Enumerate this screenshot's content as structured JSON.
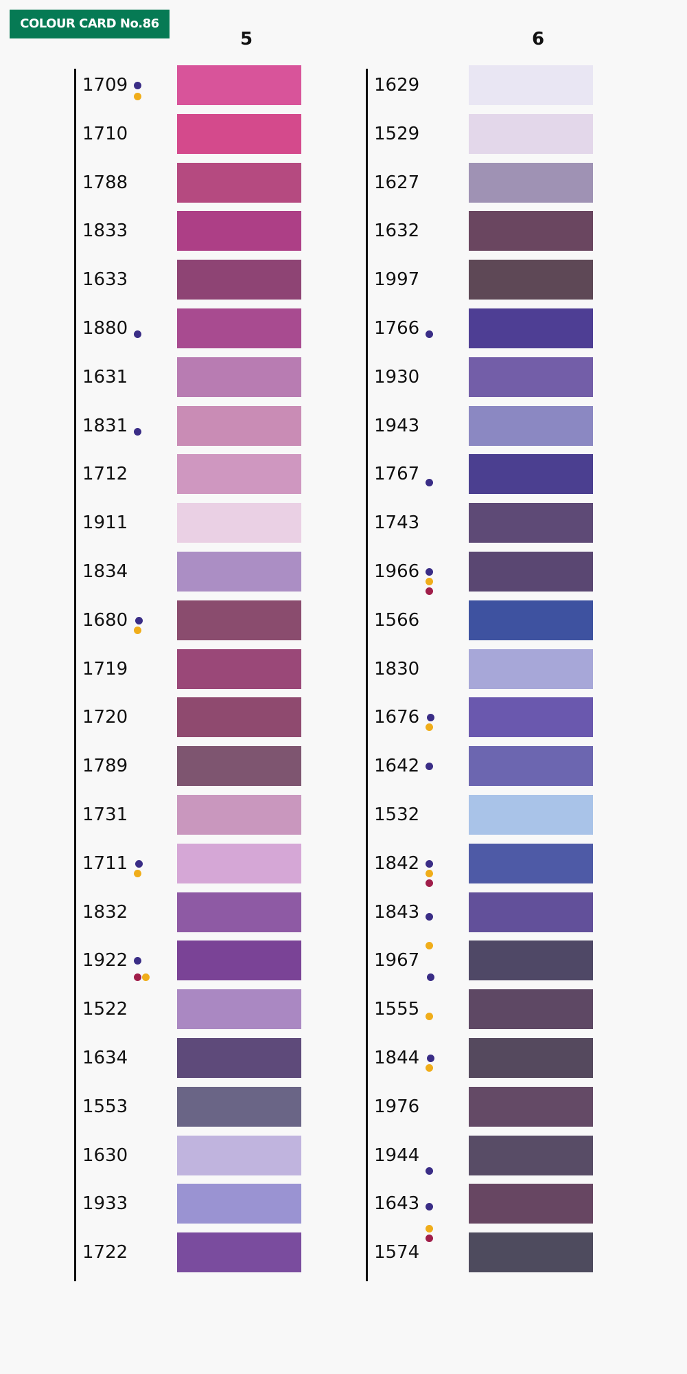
{
  "badge": "COLOUR CARD No.86",
  "dot_colors": {
    "navy": "#3a2d86",
    "yellow": "#f0ad1a",
    "crimson": "#a01e4a"
  },
  "columns": [
    {
      "heading": "5",
      "rows": [
        {
          "code": "1709",
          "color": "#d8549a",
          "dots": [
            [
              "navy",
              0,
              0
            ],
            [
              "yellow",
              0,
              16
            ]
          ]
        },
        {
          "code": "1710",
          "color": "#d44a8c",
          "dots": []
        },
        {
          "code": "1788",
          "color": "#b54a80",
          "dots": []
        },
        {
          "code": "1833",
          "color": "#ad3f86",
          "dots": []
        },
        {
          "code": "1633",
          "color": "#8e4474",
          "dots": []
        },
        {
          "code": "1880",
          "color": "#a84b90",
          "dots": [
            [
              "navy",
              0,
              8
            ]
          ]
        },
        {
          "code": "1631",
          "color": "#b87cb2",
          "dots": []
        },
        {
          "code": "1831",
          "color": "#c98cb5",
          "dots": [
            [
              "navy",
              0,
              8
            ]
          ]
        },
        {
          "code": "1712",
          "color": "#cf97c0",
          "dots": []
        },
        {
          "code": "1911",
          "color": "#ead0e4",
          "dots": []
        },
        {
          "code": "1834",
          "color": "#ab8ec4",
          "dots": []
        },
        {
          "code": "1680",
          "color": "#8a4c6e",
          "dots": [
            [
              "navy",
              2,
              0
            ],
            [
              "yellow",
              0,
              14
            ]
          ]
        },
        {
          "code": "1719",
          "color": "#9a4878",
          "dots": []
        },
        {
          "code": "1720",
          "color": "#8f4a6f",
          "dots": []
        },
        {
          "code": "1789",
          "color": "#7e5570",
          "dots": []
        },
        {
          "code": "1731",
          "color": "#c997be",
          "dots": []
        },
        {
          "code": "1711",
          "color": "#d5a7d6",
          "dots": [
            [
              "navy",
              2,
              0
            ],
            [
              "yellow",
              0,
              14
            ]
          ]
        },
        {
          "code": "1832",
          "color": "#8e5aa4",
          "dots": []
        },
        {
          "code": "1922",
          "color": "#7a4396",
          "dots": [
            [
              "navy",
              0,
              0
            ],
            [
              "crimson",
              0,
              24
            ],
            [
              "yellow",
              12,
              24
            ]
          ]
        },
        {
          "code": "1522",
          "color": "#aa88c2",
          "dots": []
        },
        {
          "code": "1634",
          "color": "#5e4a7a",
          "dots": []
        },
        {
          "code": "1553",
          "color": "#6a6586",
          "dots": []
        },
        {
          "code": "1630",
          "color": "#c0b4de",
          "dots": []
        },
        {
          "code": "1933",
          "color": "#9a93d2",
          "dots": []
        },
        {
          "code": "1722",
          "color": "#7a4c9e",
          "dots": []
        }
      ]
    },
    {
      "heading": "6",
      "rows": [
        {
          "code": "1629",
          "color": "#e9e6f3",
          "dots": []
        },
        {
          "code": "1529",
          "color": "#e3d7ea",
          "dots": []
        },
        {
          "code": "1627",
          "color": "#9f92b4",
          "dots": []
        },
        {
          "code": "1632",
          "color": "#6a4660",
          "dots": []
        },
        {
          "code": "1997",
          "color": "#5e4856",
          "dots": []
        },
        {
          "code": "1766",
          "color": "#4e3e94",
          "dots": [
            [
              "navy",
              0,
              8
            ]
          ]
        },
        {
          "code": "1930",
          "color": "#735ea8",
          "dots": []
        },
        {
          "code": "1943",
          "color": "#8b88c2",
          "dots": []
        },
        {
          "code": "1767",
          "color": "#4b3f90",
          "dots": [
            [
              "navy",
              0,
              12
            ]
          ]
        },
        {
          "code": "1743",
          "color": "#5e4a76",
          "dots": []
        },
        {
          "code": "1966",
          "color": "#5a4772",
          "dots": [
            [
              "navy",
              0,
              0
            ],
            [
              "yellow",
              0,
              14
            ],
            [
              "crimson",
              0,
              28
            ]
          ]
        },
        {
          "code": "1566",
          "color": "#3e52a0",
          "dots": []
        },
        {
          "code": "1830",
          "color": "#a7a7d8",
          "dots": []
        },
        {
          "code": "1676",
          "color": "#6a58ae",
          "dots": [
            [
              "navy",
              2,
              0
            ],
            [
              "yellow",
              0,
              14
            ]
          ]
        },
        {
          "code": "1642",
          "color": "#6c66b0",
          "dots": [
            [
              "navy",
              0,
              0
            ]
          ]
        },
        {
          "code": "1532",
          "color": "#a9c3e8",
          "dots": []
        },
        {
          "code": "1842",
          "color": "#4e5aa6",
          "dots": [
            [
              "navy",
              0,
              0
            ],
            [
              "yellow",
              0,
              14
            ],
            [
              "crimson",
              0,
              28
            ]
          ]
        },
        {
          "code": "1843",
          "color": "#62509a",
          "dots": [
            [
              "navy",
              0,
              6
            ],
            [
              "yellow",
              0,
              48
            ]
          ]
        },
        {
          "code": "1967",
          "color": "#4f4866",
          "dots": [
            [
              "navy",
              2,
              24
            ]
          ]
        },
        {
          "code": "1555",
          "color": "#5e4864",
          "dots": [
            [
              "yellow",
              0,
              10
            ]
          ]
        },
        {
          "code": "1844",
          "color": "#55495e",
          "dots": [
            [
              "navy",
              2,
              0
            ],
            [
              "yellow",
              0,
              14
            ]
          ]
        },
        {
          "code": "1976",
          "color": "#644a66",
          "dots": []
        },
        {
          "code": "1944",
          "color": "#584c66",
          "dots": [
            [
              "navy",
              0,
              22
            ]
          ]
        },
        {
          "code": "1643",
          "color": "#674662",
          "dots": [
            [
              "navy",
              0,
              4
            ],
            [
              "yellow",
              0,
              36
            ],
            [
              "crimson",
              0,
              50
            ]
          ]
        },
        {
          "code": "1574",
          "color": "#4e4b5e",
          "dots": []
        }
      ]
    }
  ]
}
